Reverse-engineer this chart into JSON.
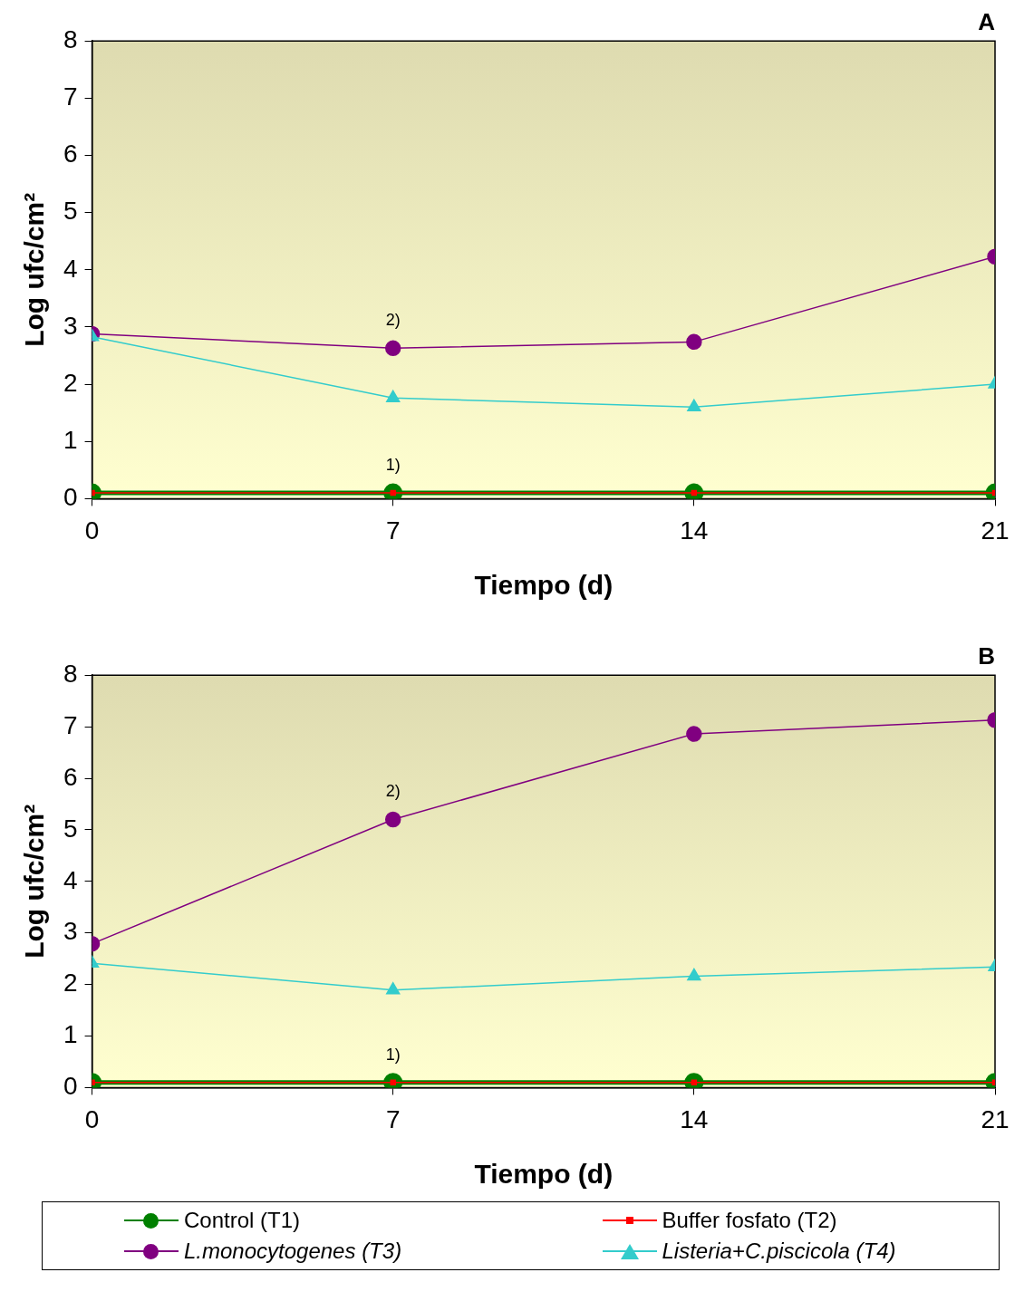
{
  "chart_data": [
    {
      "type": "line",
      "title": "A",
      "xlabel": "Tiempo (d)",
      "ylabel": "Log ufc/cm²",
      "x": [
        0,
        7,
        14,
        21
      ],
      "xlim": [
        0,
        21
      ],
      "xticks": [
        0,
        7,
        14,
        21
      ],
      "ylim": [
        0,
        8
      ],
      "yticks": [
        0,
        1,
        2,
        3,
        4,
        5,
        6,
        7,
        8
      ],
      "grid": false,
      "legend": false,
      "series": [
        {
          "color": "#008000",
          "marker": "circle",
          "values": [
            0.1,
            0.1,
            0.1,
            0.1
          ]
        },
        {
          "color": "#ff0000",
          "marker": "square",
          "values": [
            0.1,
            0.1,
            0.1,
            0.1
          ]
        },
        {
          "color": "#800080",
          "marker": "circle",
          "values": [
            2.88,
            2.63,
            2.74,
            4.23
          ]
        },
        {
          "color": "#33cccc",
          "marker": "triangle",
          "values": [
            2.83,
            1.76,
            1.6,
            2.0
          ]
        }
      ],
      "annotations": [
        "1)",
        "2)"
      ]
    },
    {
      "type": "line",
      "title": "B",
      "xlabel": "Tiempo (d)",
      "ylabel": "Log ufc/cm²",
      "x": [
        0,
        7,
        14,
        21
      ],
      "xlim": [
        0,
        21
      ],
      "xticks": [
        0,
        7,
        14,
        21
      ],
      "ylim": [
        0,
        8
      ],
      "yticks": [
        0,
        1,
        2,
        3,
        4,
        5,
        6,
        7,
        8
      ],
      "grid": false,
      "legend": "bottom",
      "series": [
        {
          "name": "Control (T1)",
          "color": "#008000",
          "marker": "circle",
          "values": [
            0.1,
            0.1,
            0.1,
            0.1
          ]
        },
        {
          "name": "Buffer fosfato (T2)",
          "color": "#ff0000",
          "marker": "square",
          "values": [
            0.1,
            0.1,
            0.1,
            0.1
          ]
        },
        {
          "name": "L.monocytogenes (T3)",
          "color": "#800080",
          "marker": "circle",
          "values": [
            2.79,
            5.2,
            6.86,
            7.13
          ]
        },
        {
          "name": "Listeria+C.piscicola (T4)",
          "color": "#33cccc",
          "marker": "triangle",
          "values": [
            2.41,
            1.89,
            2.16,
            2.34
          ]
        }
      ],
      "annotations": [
        "1)",
        "2)"
      ]
    }
  ]
}
